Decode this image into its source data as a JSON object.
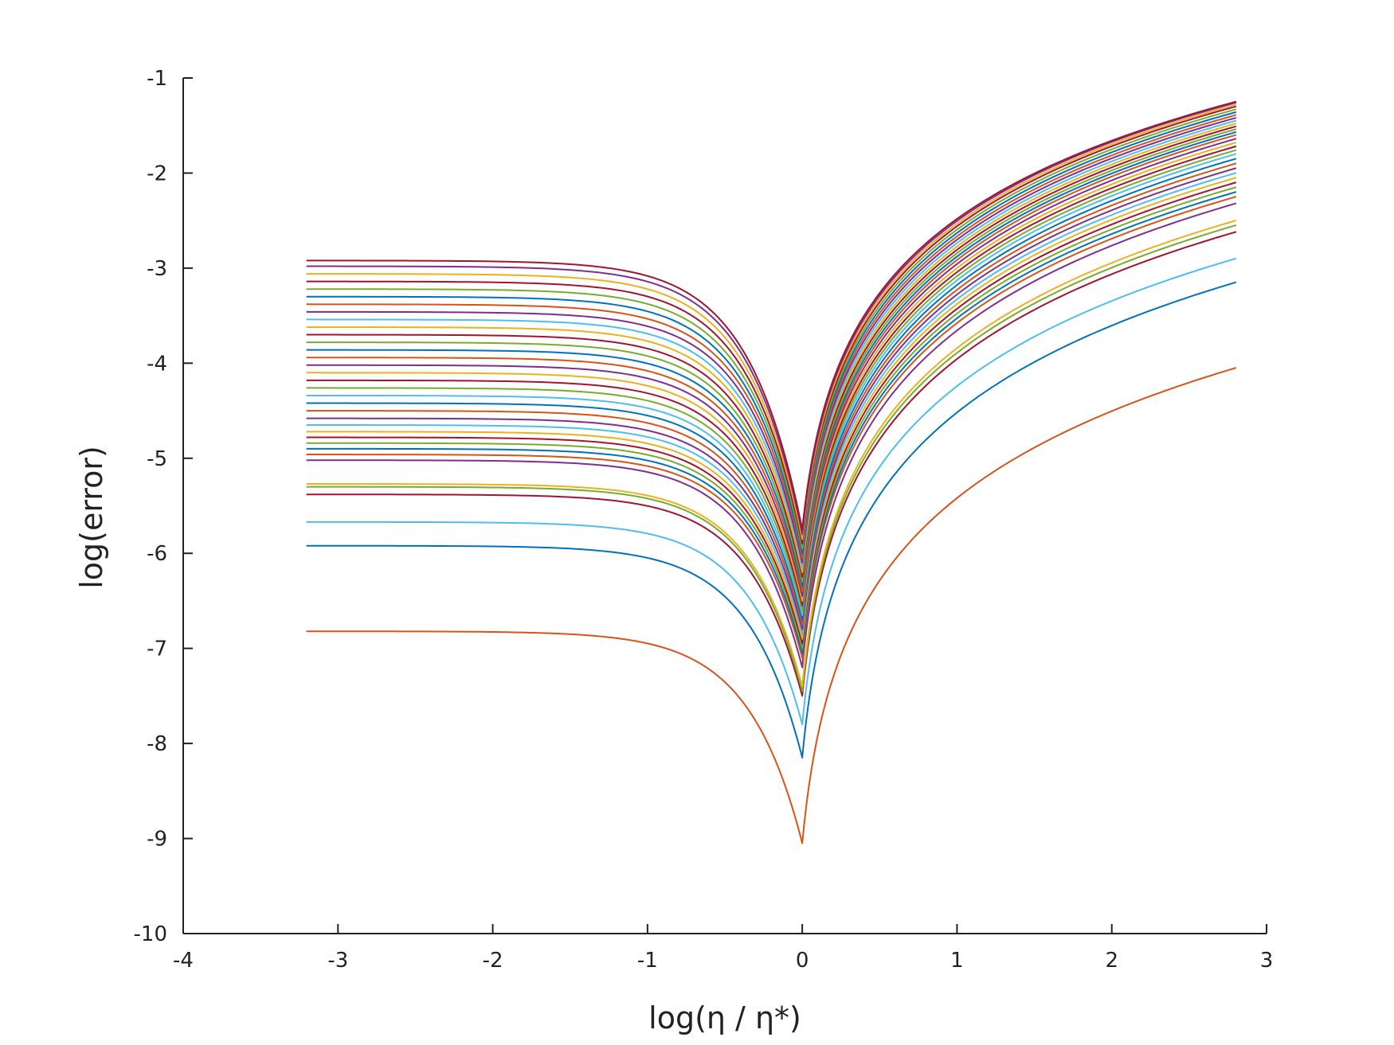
{
  "chart_data": {
    "type": "line",
    "title": "",
    "xlabel": "log(η / η*)",
    "ylabel": "log(error)",
    "xlim": [
      -4,
      3
    ],
    "ylim": [
      -10,
      -1
    ],
    "xticks": [
      -4,
      -3,
      -2,
      -1,
      0,
      1,
      2,
      3
    ],
    "yticks": [
      -1,
      -2,
      -3,
      -4,
      -5,
      -6,
      -7,
      -8,
      -9,
      -10
    ],
    "x_range_of_series": [
      -3.2,
      2.8
    ],
    "grid": false,
    "legend": "none",
    "series_note_count": 300,
    "series": [
      {
        "left_plateau": -6.82,
        "right_end": -4.05,
        "min": -9.05,
        "color": "#D95319"
      },
      {
        "left_plateau": -5.92,
        "right_end": -3.15,
        "min": -8.15,
        "color": "#0072BD"
      },
      {
        "left_plateau": -5.67,
        "right_end": -2.9,
        "min": -7.8,
        "color": "#4DBEEE"
      },
      {
        "left_plateau": -5.38,
        "right_end": -2.62,
        "min": -7.5,
        "color": "#A2142F"
      },
      {
        "left_plateau": -5.3,
        "right_end": -2.55,
        "min": -7.45,
        "color": "#77AC30"
      },
      {
        "left_plateau": -5.27,
        "right_end": -2.5,
        "min": -7.4,
        "color": "#EDB120"
      },
      {
        "left_plateau": -5.02,
        "right_end": -2.32,
        "min": -7.2,
        "color": "#7E2F8E"
      },
      {
        "left_plateau": -4.96,
        "right_end": -2.25,
        "min": -7.1,
        "color": "#D95319"
      },
      {
        "left_plateau": -4.9,
        "right_end": -2.2,
        "min": -7.05,
        "color": "#0072BD"
      },
      {
        "left_plateau": -4.84,
        "right_end": -2.15,
        "min": -7.0,
        "color": "#77AC30"
      },
      {
        "left_plateau": -4.78,
        "right_end": -2.1,
        "min": -6.95,
        "color": "#A2142F"
      },
      {
        "left_plateau": -4.72,
        "right_end": -2.05,
        "min": -6.9,
        "color": "#EDB120"
      },
      {
        "left_plateau": -4.65,
        "right_end": -2.0,
        "min": -6.85,
        "color": "#4DBEEE"
      },
      {
        "left_plateau": -4.58,
        "right_end": -1.95,
        "min": -6.8,
        "color": "#7E2F8E"
      },
      {
        "left_plateau": -4.5,
        "right_end": -1.9,
        "min": -6.75,
        "color": "#D95319"
      },
      {
        "left_plateau": -4.42,
        "right_end": -1.85,
        "min": -6.7,
        "color": "#0072BD"
      },
      {
        "left_plateau": -4.34,
        "right_end": -1.8,
        "min": -6.65,
        "color": "#4DBEEE"
      },
      {
        "left_plateau": -4.26,
        "right_end": -1.76,
        "min": -6.6,
        "color": "#77AC30"
      },
      {
        "left_plateau": -4.18,
        "right_end": -1.72,
        "min": -6.55,
        "color": "#A2142F"
      },
      {
        "left_plateau": -4.1,
        "right_end": -1.68,
        "min": -6.5,
        "color": "#EDB120"
      },
      {
        "left_plateau": -4.02,
        "right_end": -1.64,
        "min": -6.45,
        "color": "#7E2F8E"
      },
      {
        "left_plateau": -3.94,
        "right_end": -1.6,
        "min": -6.4,
        "color": "#D95319"
      },
      {
        "left_plateau": -3.86,
        "right_end": -1.57,
        "min": -6.35,
        "color": "#0072BD"
      },
      {
        "left_plateau": -3.78,
        "right_end": -1.54,
        "min": -6.3,
        "color": "#77AC30"
      },
      {
        "left_plateau": -3.7,
        "right_end": -1.51,
        "min": -6.25,
        "color": "#A2142F"
      },
      {
        "left_plateau": -3.62,
        "right_end": -1.48,
        "min": -6.2,
        "color": "#EDB120"
      },
      {
        "left_plateau": -3.54,
        "right_end": -1.45,
        "min": -6.15,
        "color": "#4DBEEE"
      },
      {
        "left_plateau": -3.46,
        "right_end": -1.42,
        "min": -6.1,
        "color": "#7E2F8E"
      },
      {
        "left_plateau": -3.38,
        "right_end": -1.39,
        "min": -6.05,
        "color": "#D95319"
      },
      {
        "left_plateau": -3.3,
        "right_end": -1.36,
        "min": -6.0,
        "color": "#0072BD"
      },
      {
        "left_plateau": -3.22,
        "right_end": -1.33,
        "min": -5.95,
        "color": "#77AC30"
      },
      {
        "left_plateau": -3.14,
        "right_end": -1.3,
        "min": -5.9,
        "color": "#A2142F"
      },
      {
        "left_plateau": -3.06,
        "right_end": -1.28,
        "min": -5.85,
        "color": "#EDB120"
      },
      {
        "left_plateau": -2.98,
        "right_end": -1.26,
        "min": -5.8,
        "color": "#7E2F8E"
      },
      {
        "left_plateau": -2.92,
        "right_end": -1.25,
        "min": -5.75,
        "color": "#A2142F"
      }
    ]
  }
}
